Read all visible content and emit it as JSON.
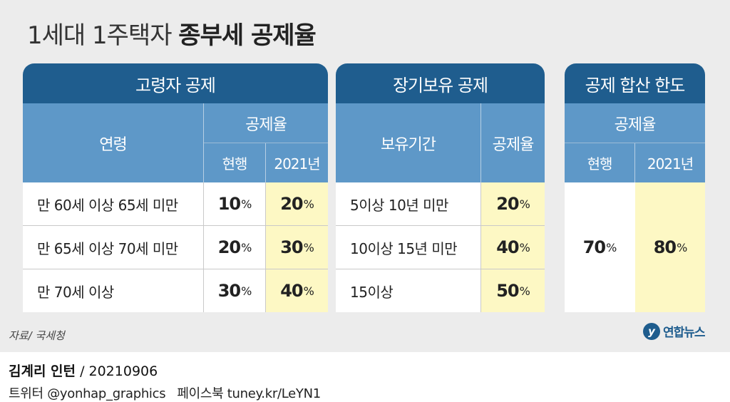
{
  "title": {
    "light": "1세대 1주택자",
    "bold": "종부세 공제율"
  },
  "elderly": {
    "heading": "고령자 공제",
    "col_age": "연령",
    "col_rate": "공제율",
    "col_current": "현행",
    "col_2021": "2021년",
    "rows": [
      {
        "age": "만 60세 이상 65세 미만",
        "current": "10",
        "y2021": "20"
      },
      {
        "age": "만 65세 이상 70세 미만",
        "current": "20",
        "y2021": "30"
      },
      {
        "age": "만 70세 이상",
        "current": "30",
        "y2021": "40"
      }
    ]
  },
  "longterm": {
    "heading": "장기보유 공제",
    "col_period": "보유기간",
    "col_rate": "공제율",
    "rows": [
      {
        "period": "5이상 10년 미만",
        "rate": "20"
      },
      {
        "period": "10이상 15년 미만",
        "rate": "40"
      },
      {
        "period": "15이상",
        "rate": "50"
      }
    ]
  },
  "limit": {
    "heading": "공제 합산 한도",
    "col_rate": "공제율",
    "col_current": "현행",
    "col_2021": "2021년",
    "current": "70",
    "y2021": "80"
  },
  "unit": "%",
  "source": "자료/ 국세청",
  "logo": {
    "mark": "y",
    "text": "연합뉴스"
  },
  "credit": {
    "name": "김계리 인턴",
    "date": "/ 20210906"
  },
  "social": {
    "twitter": "트위터 @yonhap_graphics",
    "facebook": "페이스북 tuney.kr/LeYN1"
  },
  "colors": {
    "header_dark": "#1f5d8e",
    "header_light": "#5e98c8",
    "highlight": "#fdf8c4",
    "panel": "#ececec"
  }
}
